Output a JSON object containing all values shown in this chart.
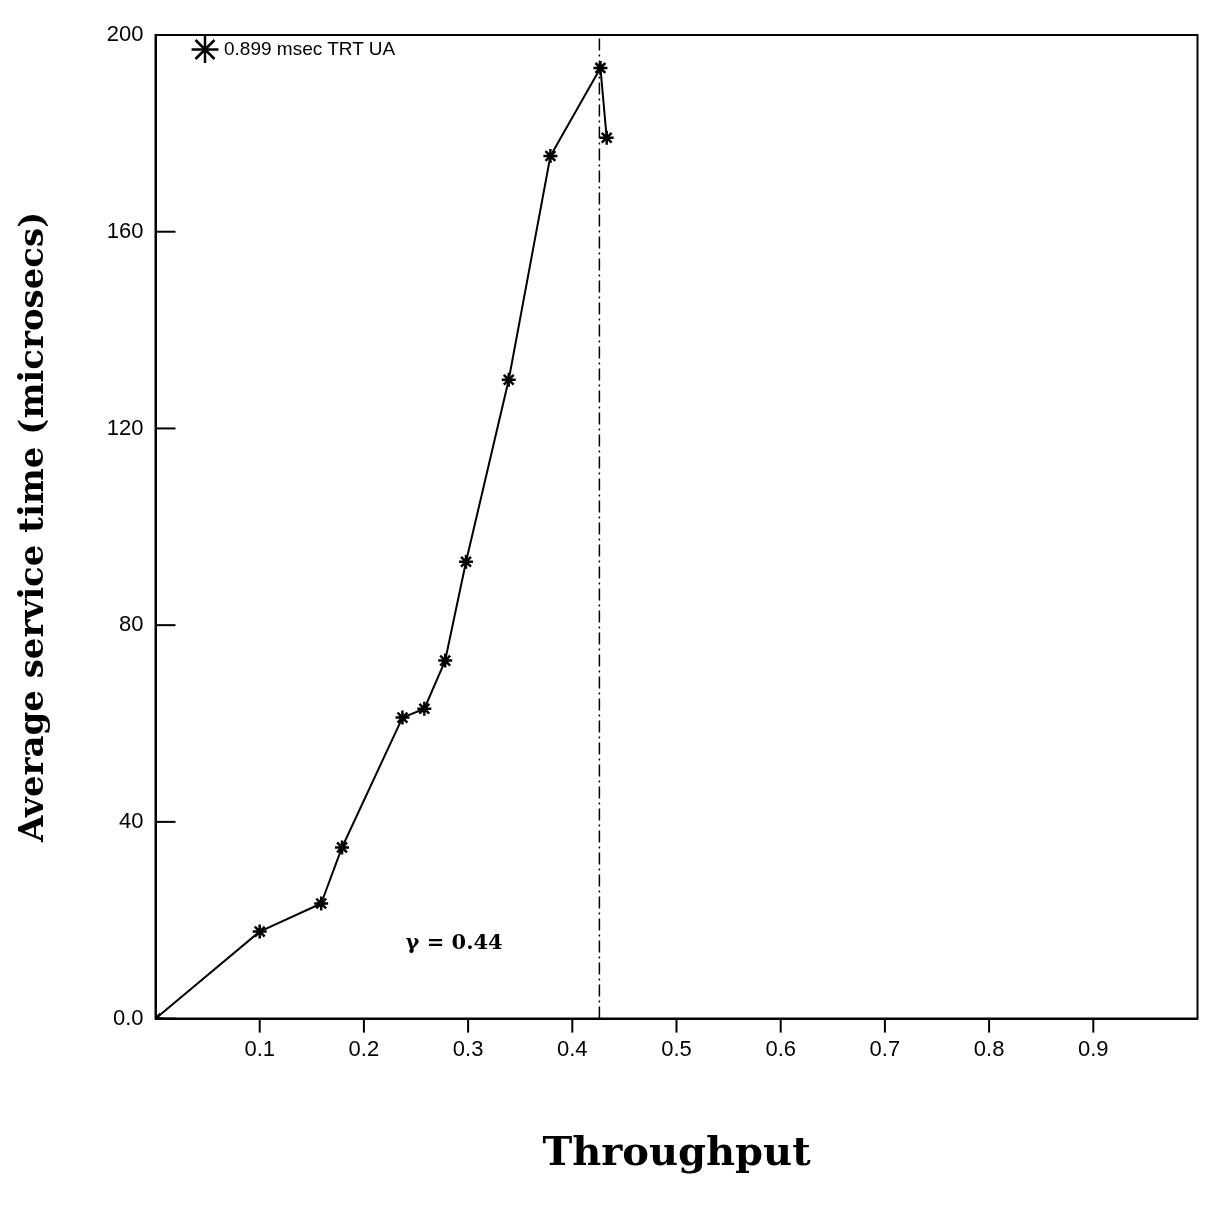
{
  "chart_data": {
    "type": "line",
    "xlabel": "Throughput",
    "ylabel": "Average service time (microsecs)",
    "x": [
      0,
      0.1,
      0.159,
      0.179,
      0.237,
      0.258,
      0.278,
      0.298,
      0.339,
      0.379,
      0.427,
      0.433
    ],
    "series": [
      {
        "name": "0.899 msec TRT UA",
        "color": "#000000",
        "values": [
          0,
          17.7,
          23.4,
          34.8,
          61.2,
          63,
          72.8,
          92.9,
          129.9,
          175.4,
          193.3,
          179.1
        ]
      }
    ],
    "xlim": [
      0,
      1.0
    ],
    "xticks": [
      0.1,
      0.2,
      0.3,
      0.4,
      0.5,
      0.6,
      0.7,
      0.8,
      0.9
    ],
    "ylim": [
      0,
      200
    ],
    "yticks": [
      {
        "value": 0,
        "label": "0.0"
      },
      40,
      80,
      120,
      160,
      200
    ],
    "ref_lines": [
      {
        "axis": "x",
        "value": 0.426,
        "color": "#000000",
        "line_style": "dashdot"
      }
    ],
    "annotations": [
      "γ = 0.44"
    ],
    "marker": "cross",
    "legend": "top left",
    "grid": false
  }
}
